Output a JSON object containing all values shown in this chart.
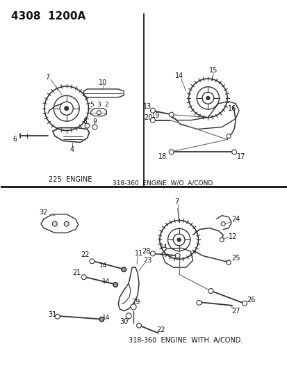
{
  "bg_color": "#ffffff",
  "header": "4308  1200A",
  "label_225": "225  ENGINE",
  "label_318wo": "318-360  ENGINE  W/O  A/COND.",
  "label_318w": "318-360  ENGINE  WITH  A/COND.",
  "fc": "#111111",
  "lc": "#333333",
  "lc2": "#666666"
}
